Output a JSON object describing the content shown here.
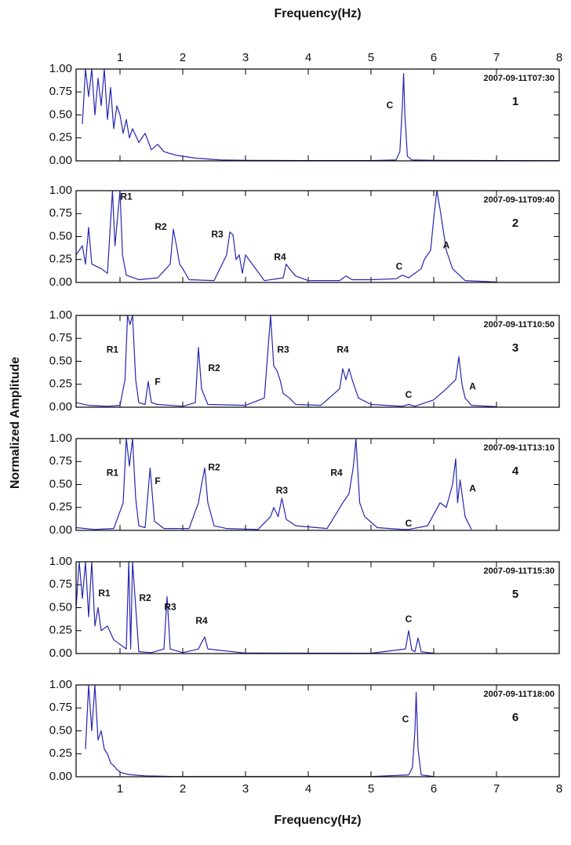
{
  "chart_data": [
    {
      "type": "line",
      "title": "2007-09-11T07:30",
      "panel_label": "1",
      "xlabel": "Frequency(Hz)",
      "ylabel": "Normalized Amplitude",
      "color": "#2626b0",
      "xlim": [
        0.3,
        8
      ],
      "ylim": [
        0,
        1
      ],
      "xticks": [
        1,
        2,
        3,
        4,
        5,
        6,
        7,
        8
      ],
      "yticks": [
        {
          "value": 0,
          "label": "0.00"
        },
        {
          "value": 0.25,
          "label": "0.25"
        },
        {
          "value": 0.5,
          "label": "0.50"
        },
        {
          "value": 0.75,
          "label": "0.75"
        },
        {
          "value": 1,
          "label": "1.00"
        }
      ],
      "x": [
        0.4,
        0.45,
        0.5,
        0.55,
        0.6,
        0.65,
        0.7,
        0.75,
        0.8,
        0.85,
        0.9,
        0.95,
        1.0,
        1.05,
        1.1,
        1.15,
        1.2,
        1.3,
        1.4,
        1.5,
        1.6,
        1.7,
        1.8,
        1.9,
        2.0,
        2.2,
        2.4,
        2.6,
        3.0,
        4.0,
        5.0,
        5.4,
        5.46,
        5.5,
        5.52,
        5.54,
        5.58,
        5.65,
        6.0,
        7.0,
        8.0
      ],
      "values": [
        0.4,
        1,
        0.7,
        1,
        0.5,
        0.9,
        0.6,
        1,
        0.45,
        0.8,
        0.35,
        0.6,
        0.5,
        0.3,
        0.45,
        0.25,
        0.35,
        0.2,
        0.3,
        0.12,
        0.18,
        0.1,
        0.08,
        0.06,
        0.05,
        0.03,
        0.02,
        0.01,
        0.005,
        0.003,
        0.003,
        0.01,
        0.1,
        0.6,
        0.95,
        0.5,
        0.05,
        0.01,
        0.005,
        0.003,
        0.002
      ],
      "annotations": [
        {
          "text": "C",
          "x": 5.3,
          "y": 0.6
        }
      ]
    },
    {
      "type": "line",
      "title": "2007-09-11T09:40",
      "panel_label": "2",
      "color": "#2626b0",
      "xlim": [
        0.3,
        8
      ],
      "ylim": [
        0,
        1
      ],
      "xticks": [
        1,
        2,
        3,
        4,
        5,
        6,
        7,
        8
      ],
      "yticks": [
        {
          "value": 0,
          "label": "0.00"
        },
        {
          "value": 0.25,
          "label": "0.25"
        },
        {
          "value": 0.5,
          "label": "0.50"
        },
        {
          "value": 0.75,
          "label": "0.75"
        },
        {
          "value": 1,
          "label": "1.00"
        }
      ],
      "x": [
        0.3,
        0.4,
        0.45,
        0.5,
        0.55,
        0.7,
        0.8,
        0.88,
        0.92,
        0.96,
        1.0,
        1.04,
        1.1,
        1.3,
        1.6,
        1.8,
        1.85,
        1.9,
        1.95,
        2.0,
        2.1,
        2.5,
        2.7,
        2.75,
        2.8,
        2.85,
        2.9,
        2.95,
        3.0,
        3.3,
        3.6,
        3.65,
        3.7,
        3.8,
        4.0,
        4.5,
        4.6,
        4.7,
        5.0,
        5.4,
        5.5,
        5.6,
        5.8,
        5.85,
        5.95,
        6.0,
        6.05,
        6.1,
        6.2,
        6.3,
        6.5,
        7.0
      ],
      "values": [
        0.3,
        0.4,
        0.2,
        0.6,
        0.2,
        0.15,
        0.1,
        1.0,
        0.4,
        0.7,
        1.0,
        0.3,
        0.08,
        0.03,
        0.05,
        0.2,
        0.58,
        0.4,
        0.2,
        0.15,
        0.03,
        0.02,
        0.3,
        0.55,
        0.52,
        0.25,
        0.3,
        0.1,
        0.3,
        0.02,
        0.05,
        0.2,
        0.15,
        0.07,
        0.02,
        0.02,
        0.07,
        0.03,
        0.03,
        0.04,
        0.08,
        0.05,
        0.15,
        0.25,
        0.35,
        0.7,
        1.0,
        0.8,
        0.35,
        0.15,
        0.02,
        0.005
      ],
      "annotations": [
        {
          "text": "R1",
          "x": 1.1,
          "y": 0.93
        },
        {
          "text": "R2",
          "x": 1.65,
          "y": 0.6
        },
        {
          "text": "R3",
          "x": 2.55,
          "y": 0.52
        },
        {
          "text": "R4",
          "x": 3.55,
          "y": 0.27
        },
        {
          "text": "C",
          "x": 5.45,
          "y": 0.17
        },
        {
          "text": "A",
          "x": 6.2,
          "y": 0.4
        }
      ]
    },
    {
      "type": "line",
      "title": "2007-09-11T10:50",
      "panel_label": "3",
      "color": "#2626b0",
      "xlim": [
        0.3,
        8
      ],
      "ylim": [
        0,
        1
      ],
      "xticks": [
        1,
        2,
        3,
        4,
        5,
        6,
        7,
        8
      ],
      "yticks": [
        {
          "value": 0,
          "label": "0.00"
        },
        {
          "value": 0.25,
          "label": "0.25"
        },
        {
          "value": 0.5,
          "label": "0.50"
        },
        {
          "value": 0.75,
          "label": "0.75"
        },
        {
          "value": 1,
          "label": "1.00"
        }
      ],
      "x": [
        0.3,
        0.5,
        0.8,
        1.0,
        1.08,
        1.12,
        1.16,
        1.2,
        1.25,
        1.3,
        1.4,
        1.45,
        1.5,
        1.6,
        2.0,
        2.2,
        2.25,
        2.3,
        2.4,
        3.0,
        3.3,
        3.4,
        3.45,
        3.5,
        3.55,
        3.6,
        3.7,
        3.8,
        4.2,
        4.5,
        4.55,
        4.6,
        4.65,
        4.7,
        4.8,
        5.0,
        5.5,
        5.6,
        5.7,
        6.0,
        6.2,
        6.35,
        6.4,
        6.45,
        6.5,
        6.6,
        7.0
      ],
      "values": [
        0.05,
        0.02,
        0.01,
        0.02,
        0.3,
        1.0,
        0.9,
        1.0,
        0.3,
        0.05,
        0.03,
        0.28,
        0.05,
        0.03,
        0.01,
        0.05,
        0.65,
        0.2,
        0.03,
        0.02,
        0.1,
        1.0,
        0.45,
        0.4,
        0.3,
        0.15,
        0.1,
        0.03,
        0.02,
        0.2,
        0.42,
        0.3,
        0.42,
        0.3,
        0.1,
        0.03,
        0.01,
        0.03,
        0.01,
        0.08,
        0.2,
        0.3,
        0.55,
        0.25,
        0.1,
        0.02,
        0.005
      ],
      "annotations": [
        {
          "text": "R1",
          "x": 0.88,
          "y": 0.62
        },
        {
          "text": "F",
          "x": 1.6,
          "y": 0.27
        },
        {
          "text": "R2",
          "x": 2.5,
          "y": 0.42
        },
        {
          "text": "R3",
          "x": 3.6,
          "y": 0.62
        },
        {
          "text": "R4",
          "x": 4.55,
          "y": 0.62
        },
        {
          "text": "C",
          "x": 5.6,
          "y": 0.13
        },
        {
          "text": "A",
          "x": 6.62,
          "y": 0.22
        }
      ]
    },
    {
      "type": "line",
      "title": "2007-09-11T13:10",
      "panel_label": "4",
      "color": "#2626b0",
      "xlim": [
        0.3,
        8
      ],
      "ylim": [
        0,
        1
      ],
      "xticks": [
        1,
        2,
        3,
        4,
        5,
        6,
        7,
        8
      ],
      "yticks": [
        {
          "value": 0,
          "label": "0.00"
        },
        {
          "value": 0.25,
          "label": "0.25"
        },
        {
          "value": 0.5,
          "label": "0.50"
        },
        {
          "value": 0.75,
          "label": "0.75"
        },
        {
          "value": 1,
          "label": "1.00"
        }
      ],
      "x": [
        0.3,
        0.6,
        0.9,
        1.05,
        1.1,
        1.15,
        1.2,
        1.25,
        1.3,
        1.4,
        1.48,
        1.55,
        1.7,
        2.1,
        2.25,
        2.3,
        2.35,
        2.4,
        2.5,
        2.7,
        3.2,
        3.4,
        3.45,
        3.52,
        3.58,
        3.65,
        3.8,
        4.3,
        4.55,
        4.65,
        4.72,
        4.76,
        4.82,
        4.9,
        5.1,
        5.5,
        5.6,
        5.9,
        6.1,
        6.2,
        6.3,
        6.35,
        6.38,
        6.42,
        6.5,
        6.6
      ],
      "values": [
        0.03,
        0.01,
        0.02,
        0.3,
        1.0,
        0.7,
        1.0,
        0.35,
        0.05,
        0.03,
        0.68,
        0.1,
        0.02,
        0.02,
        0.3,
        0.5,
        0.68,
        0.3,
        0.05,
        0.02,
        0.01,
        0.15,
        0.25,
        0.15,
        0.35,
        0.12,
        0.05,
        0.02,
        0.3,
        0.4,
        0.7,
        1.0,
        0.3,
        0.15,
        0.03,
        0.01,
        0.01,
        0.05,
        0.3,
        0.25,
        0.5,
        0.78,
        0.3,
        0.55,
        0.15,
        0.01
      ],
      "annotations": [
        {
          "text": "R1",
          "x": 0.88,
          "y": 0.62
        },
        {
          "text": "F",
          "x": 1.6,
          "y": 0.53
        },
        {
          "text": "R2",
          "x": 2.5,
          "y": 0.68
        },
        {
          "text": "R3",
          "x": 3.58,
          "y": 0.43
        },
        {
          "text": "R4",
          "x": 4.45,
          "y": 0.62
        },
        {
          "text": "C",
          "x": 5.6,
          "y": 0.07
        },
        {
          "text": "A",
          "x": 6.62,
          "y": 0.45
        }
      ]
    },
    {
      "type": "line",
      "title": "2007-09-11T15:30",
      "panel_label": "5",
      "color": "#2626b0",
      "xlim": [
        0.3,
        8
      ],
      "ylim": [
        0,
        1
      ],
      "xticks": [
        1,
        2,
        3,
        4,
        5,
        6,
        7,
        8
      ],
      "yticks": [
        {
          "value": 0,
          "label": "0.00"
        },
        {
          "value": 0.25,
          "label": "0.25"
        },
        {
          "value": 0.5,
          "label": "0.50"
        },
        {
          "value": 0.75,
          "label": "0.75"
        },
        {
          "value": 1,
          "label": "1.00"
        }
      ],
      "x": [
        0.3,
        0.35,
        0.4,
        0.45,
        0.5,
        0.55,
        0.6,
        0.65,
        0.7,
        0.8,
        0.9,
        1.0,
        1.1,
        1.14,
        1.17,
        1.2,
        1.3,
        1.5,
        1.7,
        1.75,
        1.8,
        2.0,
        2.25,
        2.3,
        2.35,
        2.4,
        3.0,
        5.0,
        5.55,
        5.6,
        5.65,
        5.7,
        5.75,
        5.8,
        6.0
      ],
      "values": [
        0.5,
        1.0,
        0.6,
        1.0,
        0.4,
        1.0,
        0.3,
        0.5,
        0.25,
        0.3,
        0.15,
        0.1,
        0.05,
        1.0,
        0.05,
        1.0,
        0.02,
        0.01,
        0.05,
        0.62,
        0.05,
        0.01,
        0.05,
        0.12,
        0.18,
        0.05,
        0.005,
        0.003,
        0.05,
        0.25,
        0.04,
        0.02,
        0.17,
        0.02,
        0.003
      ],
      "annotations": [
        {
          "text": "R1",
          "x": 0.75,
          "y": 0.65
        },
        {
          "text": "R2",
          "x": 1.4,
          "y": 0.6
        },
        {
          "text": "R3",
          "x": 1.8,
          "y": 0.5
        },
        {
          "text": "R4",
          "x": 2.3,
          "y": 0.35
        },
        {
          "text": "C",
          "x": 5.6,
          "y": 0.37
        }
      ]
    },
    {
      "type": "line",
      "title": "2007-09-11T18:00",
      "panel_label": "6",
      "xlabel": "Frequency(Hz)",
      "color": "#2626b0",
      "xlim": [
        0.3,
        8
      ],
      "ylim": [
        0,
        1
      ],
      "xticks": [
        1,
        2,
        3,
        4,
        5,
        6,
        7,
        8
      ],
      "yticks": [
        {
          "value": 0,
          "label": "0.00"
        },
        {
          "value": 0.25,
          "label": "0.25"
        },
        {
          "value": 0.5,
          "label": "0.50"
        },
        {
          "value": 0.75,
          "label": "0.75"
        },
        {
          "value": 1,
          "label": "1.00"
        }
      ],
      "x": [
        0.45,
        0.5,
        0.55,
        0.6,
        0.65,
        0.7,
        0.75,
        0.8,
        0.85,
        0.9,
        0.95,
        1.0,
        1.1,
        1.2,
        1.4,
        1.8,
        3.0,
        5.0,
        5.6,
        5.66,
        5.7,
        5.72,
        5.75,
        5.8,
        6.0
      ],
      "values": [
        0.3,
        1.0,
        0.5,
        1.0,
        0.4,
        0.5,
        0.3,
        0.25,
        0.15,
        0.12,
        0.08,
        0.05,
        0.03,
        0.02,
        0.01,
        0.003,
        0.002,
        0.002,
        0.02,
        0.1,
        0.5,
        0.92,
        0.3,
        0.02,
        0.002
      ],
      "annotations": [
        {
          "text": "C",
          "x": 5.55,
          "y": 0.62
        }
      ]
    }
  ]
}
